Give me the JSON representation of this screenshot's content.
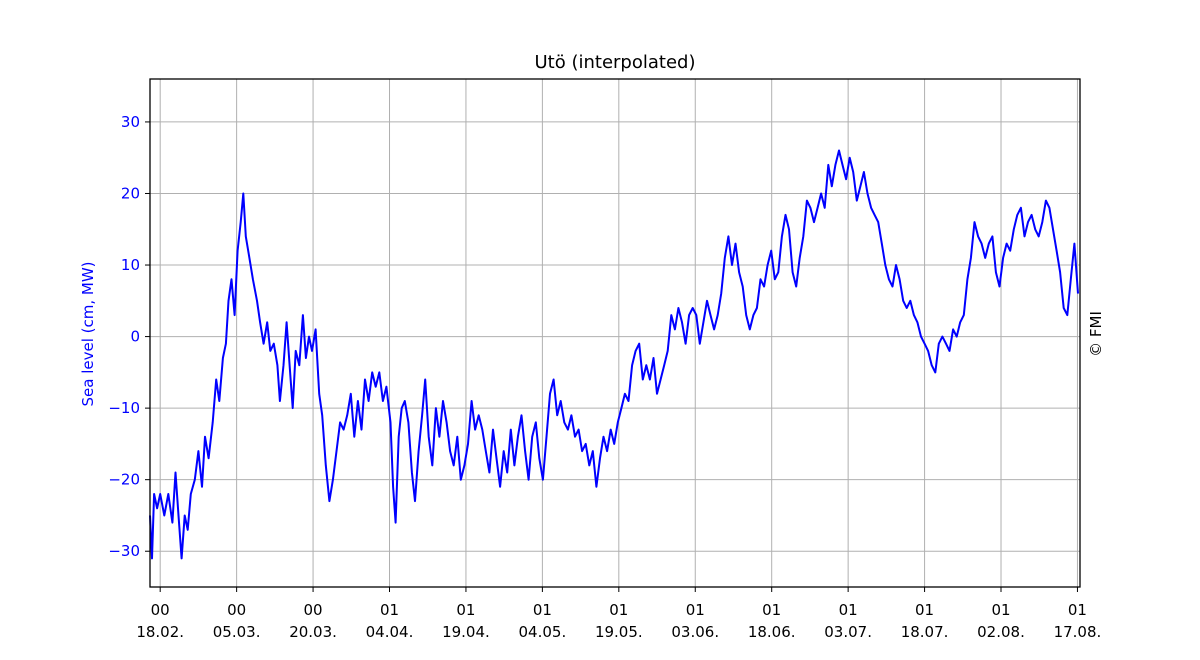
{
  "chart_data": {
    "type": "line",
    "title": "Utö (interpolated)",
    "ylabel": "Sea level (cm, MW)",
    "watermark": "© FMI",
    "ylim": [
      -35,
      36
    ],
    "yticks": [
      -30,
      -20,
      -10,
      0,
      10,
      20,
      30
    ],
    "ytick_labels": [
      "−30",
      "−20",
      "−10",
      "0",
      "10",
      "20",
      "30"
    ],
    "x_range_days": [
      -2,
      180.5
    ],
    "xticks": [
      {
        "day": 0,
        "hour": "00",
        "date": "18.02."
      },
      {
        "day": 15,
        "hour": "00",
        "date": "05.03."
      },
      {
        "day": 30,
        "hour": "00",
        "date": "20.03."
      },
      {
        "day": 45,
        "hour": "01",
        "date": "04.04."
      },
      {
        "day": 60,
        "hour": "01",
        "date": "19.04."
      },
      {
        "day": 75,
        "hour": "01",
        "date": "04.05."
      },
      {
        "day": 90,
        "hour": "01",
        "date": "19.05."
      },
      {
        "day": 105,
        "hour": "01",
        "date": "03.06."
      },
      {
        "day": 120,
        "hour": "01",
        "date": "18.06."
      },
      {
        "day": 135,
        "hour": "01",
        "date": "03.07."
      },
      {
        "day": 150,
        "hour": "01",
        "date": "18.07."
      },
      {
        "day": 165,
        "hour": "01",
        "date": "02.08."
      },
      {
        "day": 180,
        "hour": "01",
        "date": "17.08."
      }
    ],
    "grid": true,
    "line_color": "#0000ff",
    "ylabel_color": "#0000ff",
    "series": [
      {
        "points": [
          [
            -2,
            -25
          ],
          [
            -1.6,
            -31
          ],
          [
            -1.2,
            -22
          ],
          [
            -0.6,
            -24
          ],
          [
            0,
            -22
          ],
          [
            0.8,
            -25
          ],
          [
            1.6,
            -22
          ],
          [
            2.4,
            -26
          ],
          [
            3,
            -19
          ],
          [
            3.6,
            -25
          ],
          [
            4.2,
            -31
          ],
          [
            4.8,
            -25
          ],
          [
            5.4,
            -27
          ],
          [
            6,
            -22
          ],
          [
            6.8,
            -20
          ],
          [
            7.5,
            -16
          ],
          [
            8.2,
            -21
          ],
          [
            8.8,
            -14
          ],
          [
            9.5,
            -17
          ],
          [
            10.3,
            -12
          ],
          [
            11,
            -6
          ],
          [
            11.6,
            -9
          ],
          [
            12.3,
            -3
          ],
          [
            12.9,
            -1
          ],
          [
            13.4,
            5
          ],
          [
            14,
            8
          ],
          [
            14.6,
            3
          ],
          [
            15.2,
            12
          ],
          [
            15.8,
            16
          ],
          [
            16.3,
            20
          ],
          [
            16.8,
            14
          ],
          [
            17.5,
            11
          ],
          [
            18.2,
            8
          ],
          [
            19,
            5
          ],
          [
            19.6,
            2
          ],
          [
            20.3,
            -1
          ],
          [
            21,
            2
          ],
          [
            21.6,
            -2
          ],
          [
            22.3,
            -1
          ],
          [
            23,
            -4
          ],
          [
            23.5,
            -9
          ],
          [
            24.2,
            -4
          ],
          [
            24.8,
            2
          ],
          [
            25.4,
            -4
          ],
          [
            26,
            -10
          ],
          [
            26.6,
            -2
          ],
          [
            27.3,
            -4
          ],
          [
            28,
            3
          ],
          [
            28.6,
            -3
          ],
          [
            29.2,
            0
          ],
          [
            29.8,
            -2
          ],
          [
            30.5,
            1
          ],
          [
            31.2,
            -8
          ],
          [
            31.8,
            -11
          ],
          [
            32.5,
            -18
          ],
          [
            33.2,
            -23
          ],
          [
            33.9,
            -20
          ],
          [
            34.6,
            -16
          ],
          [
            35.3,
            -12
          ],
          [
            36,
            -13
          ],
          [
            36.7,
            -11
          ],
          [
            37.4,
            -8
          ],
          [
            38.1,
            -14
          ],
          [
            38.8,
            -9
          ],
          [
            39.5,
            -13
          ],
          [
            40.2,
            -6
          ],
          [
            40.9,
            -9
          ],
          [
            41.6,
            -5
          ],
          [
            42.3,
            -7
          ],
          [
            43,
            -5
          ],
          [
            43.7,
            -9
          ],
          [
            44.4,
            -7
          ],
          [
            45.2,
            -12
          ],
          [
            45.7,
            -21
          ],
          [
            46.2,
            -26
          ],
          [
            46.8,
            -14
          ],
          [
            47.4,
            -10
          ],
          [
            48,
            -9
          ],
          [
            48.7,
            -12
          ],
          [
            49.4,
            -19
          ],
          [
            50,
            -23
          ],
          [
            50.7,
            -16
          ],
          [
            51.4,
            -11
          ],
          [
            52,
            -6
          ],
          [
            52.7,
            -14
          ],
          [
            53.4,
            -18
          ],
          [
            54.1,
            -10
          ],
          [
            54.8,
            -14
          ],
          [
            55.5,
            -9
          ],
          [
            56.2,
            -12
          ],
          [
            56.9,
            -16
          ],
          [
            57.6,
            -18
          ],
          [
            58.3,
            -14
          ],
          [
            59,
            -20
          ],
          [
            59.7,
            -18
          ],
          [
            60.4,
            -15
          ],
          [
            61.1,
            -9
          ],
          [
            61.8,
            -13
          ],
          [
            62.5,
            -11
          ],
          [
            63.2,
            -13
          ],
          [
            63.9,
            -16
          ],
          [
            64.6,
            -19
          ],
          [
            65.3,
            -13
          ],
          [
            66,
            -17
          ],
          [
            66.7,
            -21
          ],
          [
            67.4,
            -16
          ],
          [
            68.1,
            -19
          ],
          [
            68.8,
            -13
          ],
          [
            69.5,
            -18
          ],
          [
            70.2,
            -14
          ],
          [
            70.9,
            -11
          ],
          [
            71.6,
            -16
          ],
          [
            72.3,
            -20
          ],
          [
            73,
            -14
          ],
          [
            73.7,
            -12
          ],
          [
            74.4,
            -17
          ],
          [
            75.1,
            -20
          ],
          [
            75.8,
            -14
          ],
          [
            76.5,
            -8
          ],
          [
            77.2,
            -6
          ],
          [
            77.9,
            -11
          ],
          [
            78.6,
            -9
          ],
          [
            79.3,
            -12
          ],
          [
            80,
            -13
          ],
          [
            80.7,
            -11
          ],
          [
            81.4,
            -14
          ],
          [
            82.1,
            -13
          ],
          [
            82.8,
            -16
          ],
          [
            83.5,
            -15
          ],
          [
            84.2,
            -18
          ],
          [
            84.9,
            -16
          ],
          [
            85.6,
            -21
          ],
          [
            86.3,
            -17
          ],
          [
            87,
            -14
          ],
          [
            87.7,
            -16
          ],
          [
            88.4,
            -13
          ],
          [
            89.1,
            -15
          ],
          [
            89.8,
            -12
          ],
          [
            90.5,
            -10
          ],
          [
            91.2,
            -8
          ],
          [
            91.9,
            -9
          ],
          [
            92.6,
            -4
          ],
          [
            93.3,
            -2
          ],
          [
            94,
            -1
          ],
          [
            94.7,
            -6
          ],
          [
            95.4,
            -4
          ],
          [
            96.1,
            -6
          ],
          [
            96.8,
            -3
          ],
          [
            97.5,
            -8
          ],
          [
            98.2,
            -6
          ],
          [
            98.9,
            -4
          ],
          [
            99.6,
            -2
          ],
          [
            100.3,
            3
          ],
          [
            101,
            1
          ],
          [
            101.7,
            4
          ],
          [
            102.4,
            2
          ],
          [
            103.1,
            -1
          ],
          [
            103.8,
            3
          ],
          [
            104.5,
            4
          ],
          [
            105.2,
            3
          ],
          [
            105.9,
            -1
          ],
          [
            106.6,
            2
          ],
          [
            107.3,
            5
          ],
          [
            108,
            3
          ],
          [
            108.7,
            1
          ],
          [
            109.4,
            3
          ],
          [
            110.1,
            6
          ],
          [
            110.8,
            11
          ],
          [
            111.5,
            14
          ],
          [
            112.2,
            10
          ],
          [
            112.9,
            13
          ],
          [
            113.6,
            9
          ],
          [
            114.3,
            7
          ],
          [
            115,
            3
          ],
          [
            115.7,
            1
          ],
          [
            116.4,
            3
          ],
          [
            117.1,
            4
          ],
          [
            117.8,
            8
          ],
          [
            118.5,
            7
          ],
          [
            119.2,
            10
          ],
          [
            119.9,
            12
          ],
          [
            120.6,
            8
          ],
          [
            121.3,
            9
          ],
          [
            122,
            14
          ],
          [
            122.7,
            17
          ],
          [
            123.4,
            15
          ],
          [
            124.1,
            9
          ],
          [
            124.8,
            7
          ],
          [
            125.5,
            11
          ],
          [
            126.2,
            14
          ],
          [
            126.9,
            19
          ],
          [
            127.6,
            18
          ],
          [
            128.3,
            16
          ],
          [
            129,
            18
          ],
          [
            129.7,
            20
          ],
          [
            130.4,
            18
          ],
          [
            131.1,
            24
          ],
          [
            131.8,
            21
          ],
          [
            132.5,
            24
          ],
          [
            133.2,
            26
          ],
          [
            133.9,
            24
          ],
          [
            134.6,
            22
          ],
          [
            135.3,
            25
          ],
          [
            136,
            23
          ],
          [
            136.7,
            19
          ],
          [
            137.4,
            21
          ],
          [
            138.1,
            23
          ],
          [
            138.8,
            20
          ],
          [
            139.5,
            18
          ],
          [
            140.2,
            17
          ],
          [
            140.9,
            16
          ],
          [
            141.6,
            13
          ],
          [
            142.3,
            10
          ],
          [
            143,
            8
          ],
          [
            143.7,
            7
          ],
          [
            144.4,
            10
          ],
          [
            145.1,
            8
          ],
          [
            145.8,
            5
          ],
          [
            146.5,
            4
          ],
          [
            147.2,
            5
          ],
          [
            147.9,
            3
          ],
          [
            148.6,
            2
          ],
          [
            149.3,
            0
          ],
          [
            150,
            -1
          ],
          [
            150.7,
            -2
          ],
          [
            151.4,
            -4
          ],
          [
            152.1,
            -5
          ],
          [
            152.8,
            -1
          ],
          [
            153.5,
            0
          ],
          [
            154.2,
            -1
          ],
          [
            154.9,
            -2
          ],
          [
            155.6,
            1
          ],
          [
            156.3,
            0
          ],
          [
            157,
            2
          ],
          [
            157.7,
            3
          ],
          [
            158.4,
            8
          ],
          [
            159.1,
            11
          ],
          [
            159.8,
            16
          ],
          [
            160.5,
            14
          ],
          [
            161.2,
            13
          ],
          [
            161.9,
            11
          ],
          [
            162.6,
            13
          ],
          [
            163.3,
            14
          ],
          [
            164,
            9
          ],
          [
            164.7,
            7
          ],
          [
            165.4,
            11
          ],
          [
            166.1,
            13
          ],
          [
            166.8,
            12
          ],
          [
            167.5,
            15
          ],
          [
            168.2,
            17
          ],
          [
            168.9,
            18
          ],
          [
            169.6,
            14
          ],
          [
            170.3,
            16
          ],
          [
            171,
            17
          ],
          [
            171.7,
            15
          ],
          [
            172.4,
            14
          ],
          [
            173.1,
            16
          ],
          [
            173.8,
            19
          ],
          [
            174.5,
            18
          ],
          [
            175.2,
            15
          ],
          [
            175.9,
            12
          ],
          [
            176.6,
            9
          ],
          [
            177.3,
            4
          ],
          [
            178,
            3
          ],
          [
            178.7,
            8
          ],
          [
            179.4,
            13
          ],
          [
            180.1,
            6
          ]
        ]
      }
    ]
  }
}
